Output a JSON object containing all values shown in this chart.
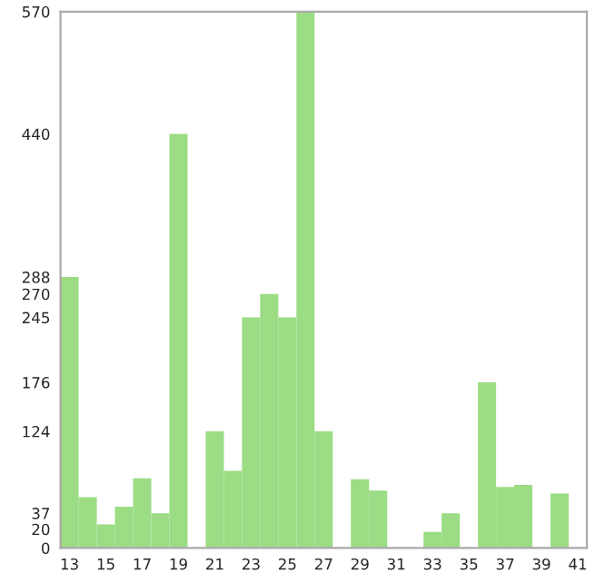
{
  "chart_data": {
    "type": "bar",
    "categories": [
      "13",
      null,
      "15",
      null,
      "17",
      null,
      "19",
      null,
      "21",
      null,
      "23",
      null,
      "25",
      null,
      "27",
      null,
      "29",
      null,
      "31",
      null,
      "33",
      null,
      "35",
      null,
      "37",
      null,
      "39",
      null,
      "41"
    ],
    "values": [
      288,
      54,
      25,
      44,
      74,
      37,
      440,
      0,
      124,
      82,
      245,
      270,
      245,
      570,
      124,
      0,
      73,
      61,
      0,
      0,
      17,
      37,
      0,
      176,
      65,
      67,
      0,
      58,
      0
    ],
    "color": "#9bdc84",
    "ylim": [
      0,
      570
    ],
    "yticks": [
      0,
      20,
      37,
      124,
      176,
      245,
      270,
      288,
      440,
      570
    ]
  }
}
